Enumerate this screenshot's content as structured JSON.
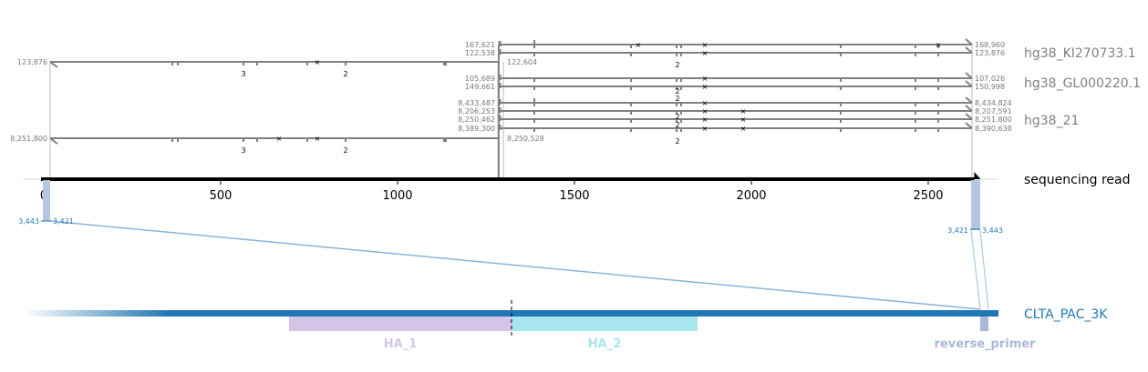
{
  "chart_data": {
    "type": "alignment",
    "read": {
      "label": "sequencing read",
      "x_ticks": [
        0,
        500,
        1000,
        1500,
        2000,
        2500
      ]
    },
    "reference_groups": [
      {
        "name": "hg38_KI270733.1",
        "alignments": [
          {
            "read_start": 1290,
            "read_end": 2630,
            "ref_start": "167,621",
            "ref_end": "168,960"
          },
          {
            "read_start": 1290,
            "read_end": 2630,
            "ref_start": "122,538",
            "ref_end": "123,876"
          }
        ]
      },
      {
        "name": "hg38_GL000220.1",
        "alignments": [
          {
            "read_start": 1290,
            "read_end": 2630,
            "ref_start": "105,689",
            "ref_end": "107,026"
          },
          {
            "read_start": 1290,
            "read_end": 2630,
            "ref_start": "149,661",
            "ref_end": "150,998"
          }
        ]
      },
      {
        "name": "hg38_21",
        "alignments": [
          {
            "read_start": 1290,
            "read_end": 2630,
            "ref_start": "8,433,487",
            "ref_end": "8,434,824"
          },
          {
            "read_start": 1290,
            "read_end": 2630,
            "ref_start": "8,206,253",
            "ref_end": "8,207,591"
          },
          {
            "read_start": 1290,
            "read_end": 2630,
            "ref_start": "8,250,462",
            "ref_end": "8,251,800"
          },
          {
            "read_start": 1290,
            "read_end": 2630,
            "ref_start": "8,389,300",
            "ref_end": "8,390,638"
          }
        ]
      }
    ],
    "left_alignments": [
      {
        "read_start": 20,
        "read_end": 1310,
        "ref_start": "123,876",
        "ref_end": "122,604"
      },
      {
        "read_start": 20,
        "read_end": 1310,
        "ref_start": "8,251,800",
        "ref_end": "8,250,528"
      }
    ],
    "target": {
      "name": "CLTA_PAC_3K",
      "features": [
        {
          "name": "HA_1",
          "color": "#d4c5e8"
        },
        {
          "name": "HA_2",
          "color": "#a8e6ef"
        },
        {
          "name": "reverse_primer",
          "color": "#a9b8d9"
        }
      ],
      "read_match_left": {
        "start": "3,443",
        "end": "3,421"
      },
      "read_match_right": {
        "start": "3,421",
        "end": "3,443"
      }
    },
    "annotations": {
      "indel_counts": [
        "3",
        "2",
        "3",
        "2",
        "2",
        "2",
        "2",
        "2",
        "2",
        "2",
        "2"
      ]
    },
    "colors": {
      "alignment_line": "#808080",
      "read_line": "#000000",
      "target_line": "#1f77b4",
      "match_box": "#b4c6e2"
    }
  }
}
